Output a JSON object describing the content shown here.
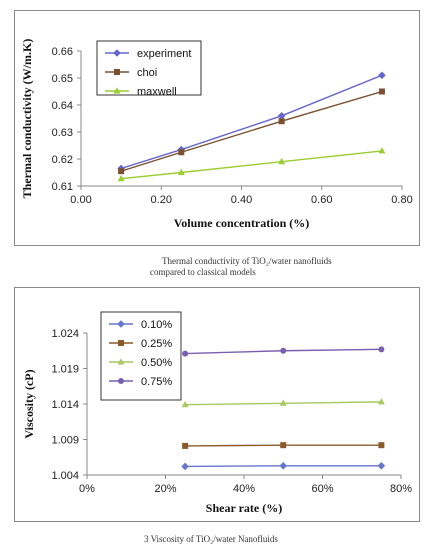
{
  "chart_data": [
    {
      "type": "line",
      "x": [
        0.1,
        0.25,
        0.5,
        0.75
      ],
      "xlabel": "Volume concentration (%)",
      "ylabel": "Thermal conductivity (W/m.K)",
      "xlim": [
        0.0,
        0.8
      ],
      "ylim": [
        0.61,
        0.66
      ],
      "xticks": [
        "0.00",
        "0.20",
        "0.40",
        "0.60",
        "0.80"
      ],
      "yticks": [
        "0.61",
        "0.62",
        "0.63",
        "0.64",
        "0.65",
        "0.66"
      ],
      "grid": false,
      "legend_position": "top-left",
      "series": [
        {
          "name": "experiment",
          "values": [
            0.6165,
            0.6235,
            0.636,
            0.651
          ],
          "color": "#6666cc",
          "marker": "diamond"
        },
        {
          "name": "choi",
          "values": [
            0.6155,
            0.6225,
            0.634,
            0.645
          ],
          "color": "#7a5030",
          "marker": "square"
        },
        {
          "name": "maxwell",
          "values": [
            0.6127,
            0.615,
            0.619,
            0.623
          ],
          "color": "#9acd32",
          "marker": "triangle"
        }
      ]
    },
    {
      "type": "line",
      "x": [
        25,
        50,
        75
      ],
      "xlabel": "Shear rate  (%)",
      "ylabel": "Viscosity  (cP)",
      "xlim": [
        0,
        80
      ],
      "ylim": [
        1.004,
        1.024
      ],
      "xticks": [
        "0%",
        "20%",
        "40%",
        "60%",
        "80%"
      ],
      "yticks": [
        "1.004",
        "1.009",
        "1.014",
        "1.019",
        "1.024"
      ],
      "grid": false,
      "legend_position": "top-left",
      "series": [
        {
          "name": "0.10%",
          "values": [
            1.0052,
            1.0053,
            1.0053
          ],
          "color": "#6677cc",
          "marker": "diamond"
        },
        {
          "name": "0.25%",
          "values": [
            1.0081,
            1.0082,
            1.0082
          ],
          "color": "#8b5a2b",
          "marker": "square"
        },
        {
          "name": "0.50%",
          "values": [
            1.0139,
            1.0141,
            1.0143
          ],
          "color": "#a8c860",
          "marker": "triangle"
        },
        {
          "name": "0.75%",
          "values": [
            1.0211,
            1.0215,
            1.0217
          ],
          "color": "#7a5fb0",
          "marker": "circle"
        }
      ]
    }
  ],
  "captions": {
    "fig1_line1": "Thermal conductivity of TiO₂/water nanofluids",
    "fig1_line2": "compared to classical models",
    "fig2": "3 Viscosity of TiO₂/water Nanofluids"
  }
}
